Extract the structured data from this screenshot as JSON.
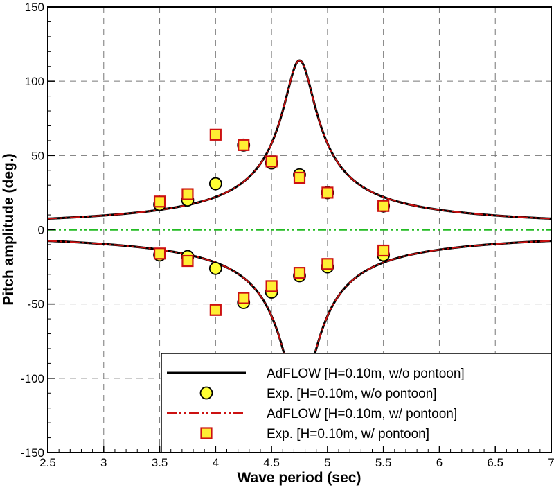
{
  "chart_data": {
    "type": "line",
    "title": "",
    "xlabel": "Wave period (sec)",
    "ylabel": "Pitch amplitude (deg.)",
    "xlim": [
      2.5,
      7
    ],
    "ylim": [
      -150,
      150
    ],
    "x_ticks": [
      "2.5",
      "3",
      "3.5",
      "4",
      "4.5",
      "5",
      "5.5",
      "6",
      "6.5",
      "7"
    ],
    "y_ticks": [
      "150",
      "100",
      "50",
      "0",
      "-50",
      "-100",
      "-150"
    ],
    "grid": true,
    "legend_position": "bottom-right",
    "zero_line": {
      "y": 0,
      "color": "#22bb22"
    },
    "curve_shape": {
      "peak_x": 4.75,
      "peak_y": 114,
      "half_width": 0.148,
      "trough_y": -114
    },
    "series": [
      {
        "name": "AdFLOW [H=0.10m, w/o pontoon]",
        "kind": "line",
        "color": "#000000",
        "x": [
          2.5,
          3.0,
          3.5,
          4.0,
          4.25,
          4.5,
          4.6,
          4.7,
          4.75,
          4.8,
          4.9,
          5.0,
          5.25,
          5.5,
          6.0,
          6.5,
          7.0
        ],
        "upper": [
          4.7,
          7.4,
          13.0,
          19.5,
          37.3,
          54.2,
          90.9,
          112.1,
          114.0,
          112.1,
          90.9,
          54.2,
          30.5,
          19.5,
          13.0,
          9.9,
          8.0
        ],
        "lower": [
          -4.7,
          -7.4,
          -13.0,
          -19.5,
          -37.3,
          -54.2,
          -90.9,
          -112.1,
          -114.0,
          -112.1,
          -90.9,
          -54.2,
          -30.5,
          -19.5,
          -13.0,
          -9.9,
          -8.0
        ]
      },
      {
        "name": "Exp. [H=0.10m, w/o pontoon]",
        "kind": "circle",
        "color": "#ffff33",
        "upper_points": [
          [
            3.5,
            17
          ],
          [
            3.75,
            20
          ],
          [
            4.0,
            31
          ],
          [
            4.25,
            57
          ],
          [
            4.5,
            45
          ],
          [
            4.75,
            37
          ],
          [
            5.0,
            25
          ],
          [
            5.5,
            16
          ]
        ],
        "lower_points": [
          [
            3.5,
            -17
          ],
          [
            3.75,
            -18
          ],
          [
            4.0,
            -26
          ],
          [
            4.25,
            -49
          ],
          [
            4.5,
            -42
          ],
          [
            4.75,
            -31
          ],
          [
            5.0,
            -25
          ],
          [
            5.5,
            -17
          ]
        ]
      },
      {
        "name": "AdFLOW [H=0.10m, w/ pontoon]",
        "kind": "dashdot",
        "color": "#cc1111",
        "x": [
          2.5,
          3.0,
          3.5,
          4.0,
          4.25,
          4.5,
          4.6,
          4.7,
          4.75,
          4.8,
          4.9,
          5.0,
          5.25,
          5.5,
          6.0,
          6.5,
          7.0
        ],
        "upper": [
          4.7,
          7.4,
          13.0,
          19.5,
          37.3,
          54.2,
          90.9,
          112.1,
          114.0,
          112.1,
          90.9,
          54.2,
          30.5,
          19.5,
          13.0,
          9.9,
          8.0
        ],
        "lower": [
          -4.7,
          -7.4,
          -13.0,
          -19.5,
          -37.3,
          -54.2,
          -90.9,
          -112.1,
          -114.0,
          -112.1,
          -90.9,
          -54.2,
          -30.5,
          -19.5,
          -13.0,
          -9.9,
          -8.0
        ]
      },
      {
        "name": "Exp. [H=0.10m, w/ pontoon]",
        "kind": "square",
        "color": "#ffee33",
        "edge": "#cc1111",
        "upper_points": [
          [
            3.5,
            19
          ],
          [
            3.75,
            24
          ],
          [
            4.0,
            64
          ],
          [
            4.25,
            57
          ],
          [
            4.5,
            46
          ],
          [
            4.75,
            35
          ],
          [
            5.0,
            25
          ],
          [
            5.5,
            16
          ]
        ],
        "lower_points": [
          [
            3.5,
            -16
          ],
          [
            3.75,
            -21
          ],
          [
            4.0,
            -54
          ],
          [
            4.25,
            -46
          ],
          [
            4.5,
            -38
          ],
          [
            4.75,
            -29
          ],
          [
            5.0,
            -23
          ],
          [
            5.5,
            -14
          ]
        ]
      }
    ]
  }
}
